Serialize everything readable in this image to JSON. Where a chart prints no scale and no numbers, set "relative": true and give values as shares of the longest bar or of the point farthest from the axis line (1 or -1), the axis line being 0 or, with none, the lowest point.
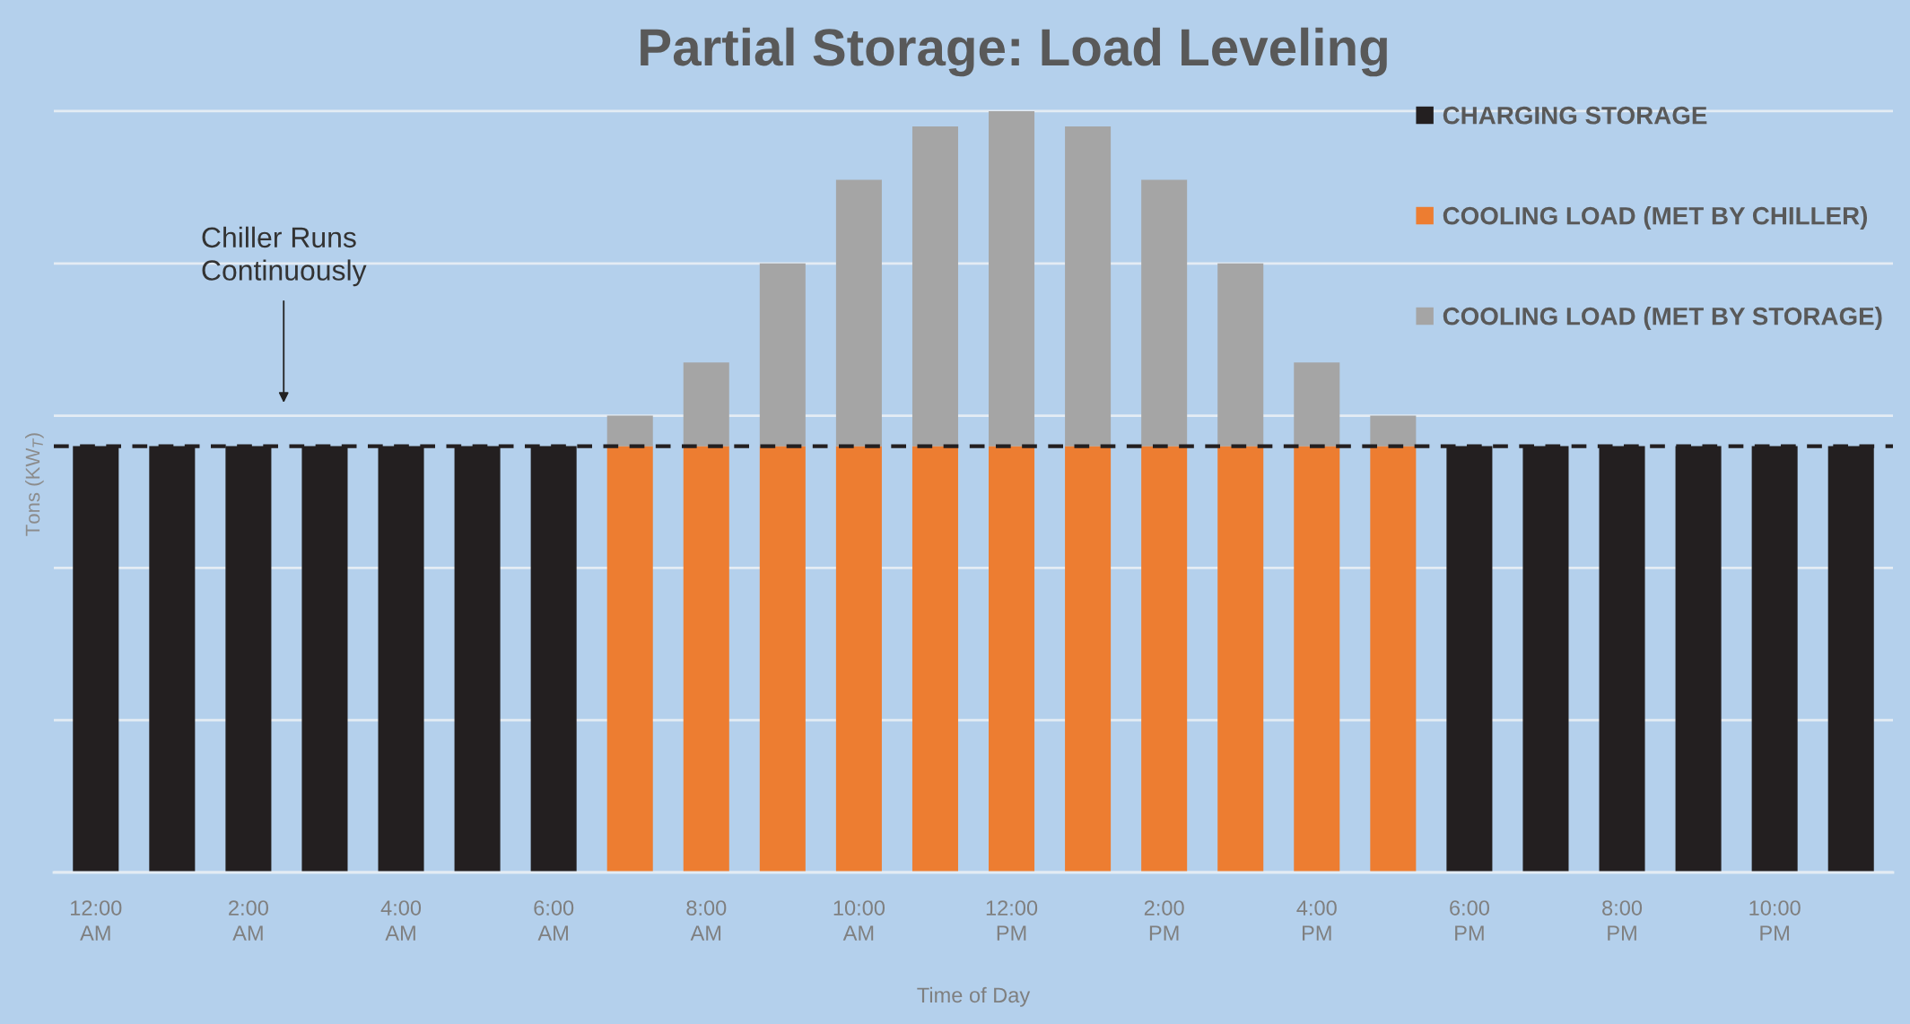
{
  "chart_data": {
    "type": "bar",
    "title": "Partial Storage: Load Leveling",
    "xlabel": "Time of Day",
    "ylabel": "Tons (KW$_{T}$)",
    "categories": [
      "12:00\nAM",
      null,
      "2:00\nAM",
      null,
      "4:00\nAM",
      null,
      "6:00\nAM",
      null,
      "8:00\nAM",
      null,
      "10:00\nAM",
      null,
      "12:00\nPM",
      null,
      "2:00\nPM",
      null,
      "4:00\nPM",
      null,
      "6:00\nPM",
      null,
      "8:00\nPM",
      null,
      "10:00\nPM",
      null
    ],
    "relative": true,
    "stacked": true,
    "series": [
      {
        "name": "CHARGING STORAGE",
        "color": "#231f20",
        "values": [
          0.56,
          0.56,
          0.56,
          0.56,
          0.56,
          0.56,
          0.56,
          null,
          null,
          null,
          null,
          null,
          null,
          null,
          null,
          null,
          null,
          null,
          0.56,
          0.56,
          0.56,
          0.56,
          0.56,
          0.56
        ]
      },
      {
        "name": "COOLING LOAD (MET BY CHILLER)",
        "color": "#ed7d31",
        "values": [
          null,
          null,
          null,
          null,
          null,
          null,
          null,
          0.56,
          0.56,
          0.56,
          0.56,
          0.56,
          0.56,
          0.56,
          0.56,
          0.56,
          0.56,
          0.56,
          null,
          null,
          null,
          null,
          null,
          null
        ]
      },
      {
        "name": "COOLING LOAD (MET BY STORAGE)",
        "color": "#a5a5a5",
        "values": [
          null,
          null,
          null,
          null,
          null,
          null,
          null,
          0.04,
          0.11,
          0.24,
          0.35,
          0.42,
          0.44,
          0.42,
          0.35,
          0.24,
          0.11,
          0.04,
          null,
          null,
          null,
          null,
          null,
          null
        ]
      }
    ],
    "ref_lines": [
      {
        "axis": "y",
        "value": 0.56,
        "color": "#231f20",
        "line_style": "dashed"
      }
    ],
    "annotations": [
      "Chiller Runs\nContinuously"
    ],
    "grid": "y",
    "legend": "top right",
    "tick_labels": "x"
  }
}
